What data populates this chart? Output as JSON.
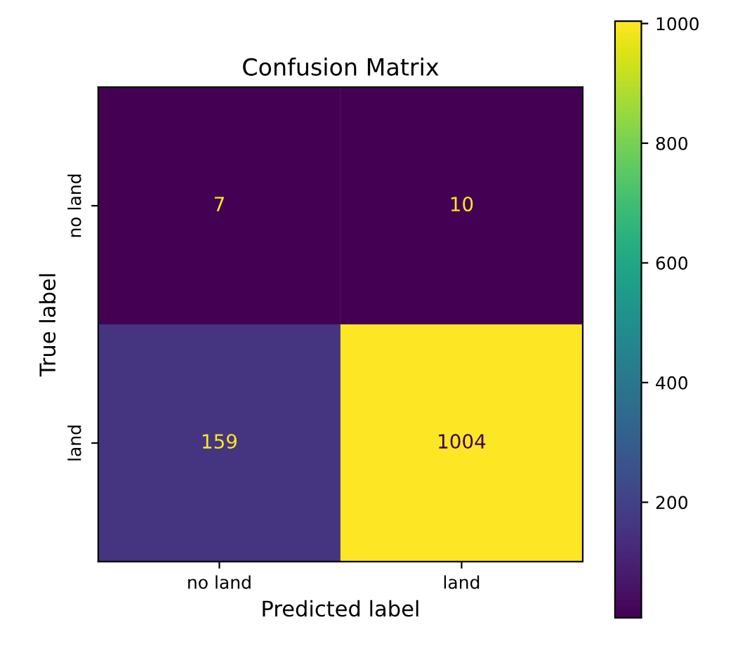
{
  "chart_data": {
    "type": "heatmap",
    "title": "Confusion Matrix",
    "xlabel": "Predicted label",
    "ylabel": "True label",
    "categories": [
      "no land",
      "land"
    ],
    "y_categories": [
      "no land",
      "land"
    ],
    "cells": [
      [
        7,
        10
      ],
      [
        159,
        1004
      ]
    ],
    "clim": [
      7,
      1004
    ],
    "cticks": [
      200,
      400,
      600,
      800,
      1000
    ],
    "data_labels": true
  }
}
